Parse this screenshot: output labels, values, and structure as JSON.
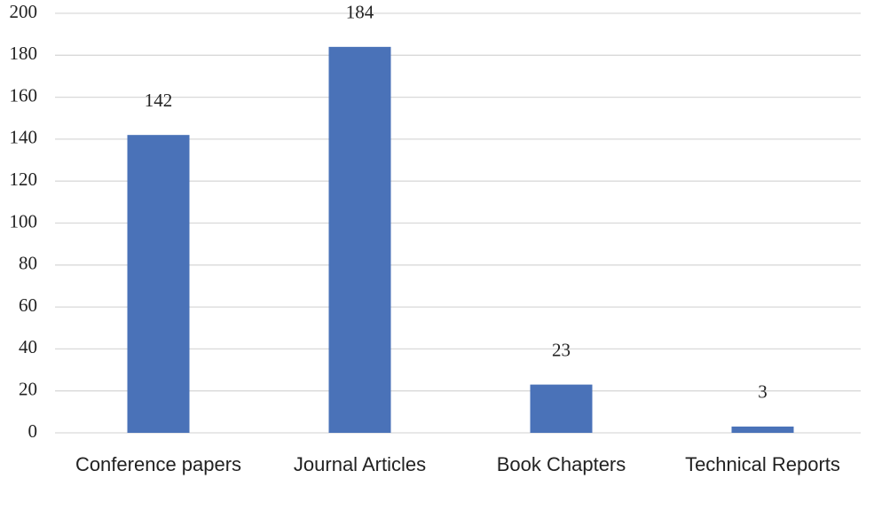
{
  "chart_data": {
    "type": "bar",
    "categories": [
      "Conference papers",
      "Journal Articles",
      "Book Chapters",
      "Technical Reports"
    ],
    "values": [
      142,
      184,
      23,
      3
    ],
    "color": "#4a72b8",
    "ylim": [
      0,
      200
    ],
    "yticks": [
      0,
      20,
      40,
      60,
      80,
      100,
      120,
      140,
      160,
      180,
      200
    ],
    "grid": true
  }
}
